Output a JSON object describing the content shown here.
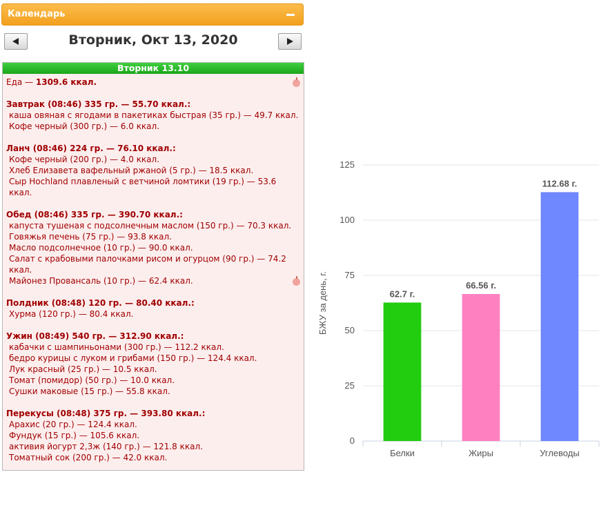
{
  "calendar": {
    "title": "Календарь",
    "date_title": "Вторник, Окт 13, 2020",
    "day_label": "Вторник 13.10",
    "total_label": "Еда — ",
    "total_value": "1309.6 ккал.",
    "meals": [
      {
        "title": "Завтрак (08:46) 335 гр. — 55.70 ккал.:",
        "items": [
          "каша овяная с ягодами в пакетиках быстрая (35 гр.) — 49.7 ккал.",
          "Кофе черный (300 гр.) — 6.0 ккал."
        ]
      },
      {
        "title": "Ланч (08:46) 224 гр. — 76.10 ккал.:",
        "items": [
          "Кофе черный (200 гр.) — 4.0 ккал.",
          "Хлеб Елизавета вафельный ржаной (5 гр.) — 18.5 ккал.",
          "Сыр Hochland плавленый с ветчиной ломтики (19 гр.) — 53.6 ккал."
        ]
      },
      {
        "title": "Обед (08:46) 335 гр. — 390.70 ккал.:",
        "items": [
          "капуста тушеная с подсолнечным маслом (150 гр.) — 70.3 ккал.",
          "Говяжья печень (75 гр.) — 93.8 ккал.",
          "Масло подсолнечное (10 гр.) — 90.0 ккал.",
          "Салат с крабовыми палочками рисом и огурцом (90 гр.) — 74.2 ккал.",
          "Майонез Провансаль (10 гр.) — 62.4 ккал."
        ]
      },
      {
        "title": "Полдник (08:48) 120 гр. — 80.40 ккал.:",
        "items": [
          "Хурма (120 гр.) — 80.4 ккал."
        ]
      },
      {
        "title": "Ужин (08:49) 540 гр. — 312.90 ккал.:",
        "items": [
          "кабачки с шампиньонами (300 гр.) — 112.2 ккал.",
          "бедро курицы с луком и грибами (150 гр.) — 124.4 ккал.",
          "Лук красный (25 гр.) — 10.5 ккал.",
          "Томат (помидор) (50 гр.) — 10.0 ккал.",
          "Сушки маковые (15 гр.) — 55.8 ккал."
        ]
      },
      {
        "title": "Перекусы (08:48) 375 гр. — 393.80 ккал.:",
        "items": [
          "Арахис (20 гр.) — 124.4 ккал.",
          "Фундук (15 гр.) — 105.6 ккал.",
          "активия йогурт 2,3ж (140 гр.) — 121.8 ккал.",
          "Томатный сок (200 гр.) — 42.0 ккал."
        ]
      }
    ]
  },
  "chart_data": {
    "type": "bar",
    "categories": [
      "Белки",
      "Жиры",
      "Углеводы"
    ],
    "values": [
      62.7,
      66.56,
      112.68
    ],
    "data_labels": [
      "62.7 г.",
      "66.56 г.",
      "112.68 г."
    ],
    "colors": [
      "#22cc0f",
      "#ff80c0",
      "#6f88ff"
    ],
    "ylabel": "БЖУ за день, г.",
    "ylim": [
      0,
      125
    ],
    "yticks": [
      0,
      25,
      50,
      75,
      100,
      125
    ],
    "grid": true
  },
  "colors": {
    "header_orange": "#f7ad33",
    "day_header_green": "#22aa22",
    "meal_text": "#a00000",
    "day_bg": "#fdeeee"
  },
  "icons": {
    "prev": "triangle-left-icon",
    "next": "triangle-right-icon",
    "collapse": "minus-icon",
    "meal_marker": "apple-icon"
  }
}
